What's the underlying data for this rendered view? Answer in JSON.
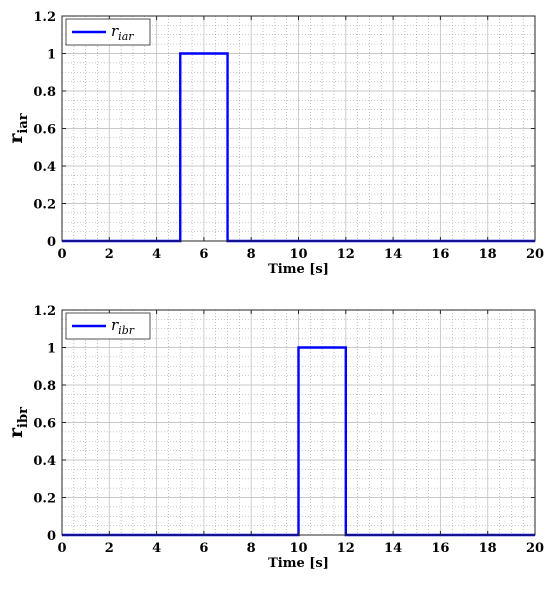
{
  "chart_data": [
    {
      "type": "line",
      "ylabel": "r",
      "ylabel_sub": "iar",
      "xlabel": "Time [s]",
      "xlim": [
        0,
        20
      ],
      "ylim": [
        0,
        1.2
      ],
      "xticks": [
        0,
        2,
        4,
        6,
        8,
        10,
        12,
        14,
        16,
        18,
        20
      ],
      "yticks": [
        0,
        0.2,
        0.4,
        0.6,
        0.8,
        1,
        1.2
      ],
      "grid": true,
      "minor_grid": true,
      "legend_position": "top-left",
      "series": [
        {
          "name": "r",
          "name_sub": "iar",
          "color": "#0000ff",
          "x": [
            0,
            5,
            5,
            7,
            7,
            20
          ],
          "y": [
            0,
            0,
            1,
            1,
            0,
            0
          ]
        }
      ]
    },
    {
      "type": "line",
      "ylabel": "r",
      "ylabel_sub": "ibr",
      "xlabel": "Time [s]",
      "xlim": [
        0,
        20
      ],
      "ylim": [
        0,
        1.2
      ],
      "xticks": [
        0,
        2,
        4,
        6,
        8,
        10,
        12,
        14,
        16,
        18,
        20
      ],
      "yticks": [
        0,
        0.2,
        0.4,
        0.6,
        0.8,
        1,
        1.2
      ],
      "grid": true,
      "minor_grid": true,
      "legend_position": "top-left",
      "series": [
        {
          "name": "r",
          "name_sub": "ibr",
          "color": "#0000ff",
          "x": [
            0,
            10,
            10,
            12,
            12,
            20
          ],
          "y": [
            0,
            0,
            1,
            1,
            0,
            0
          ]
        }
      ]
    }
  ]
}
